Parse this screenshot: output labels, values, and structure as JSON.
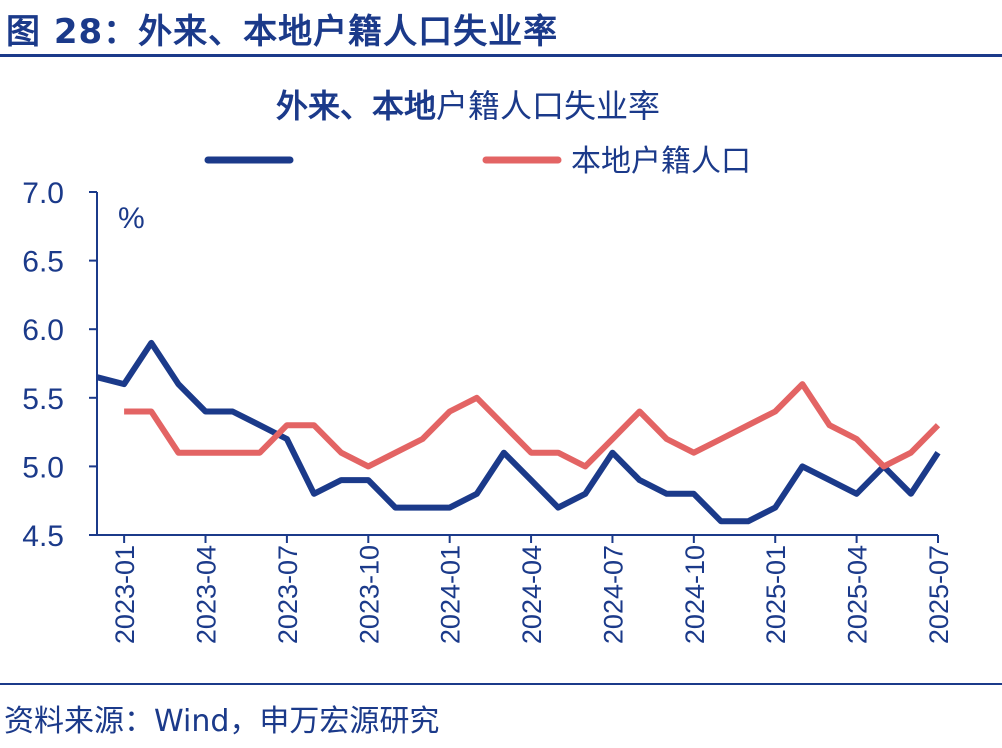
{
  "figure": {
    "title": "图 28：外来、本地户籍人口失业率",
    "source": "资料来源：Wind，申万宏源研究"
  },
  "chart_data": {
    "type": "line",
    "title_bold": "外来、本地",
    "title_rest": "户籍人口失业率",
    "ylabel": "%",
    "ylim": [
      4.5,
      7.0
    ],
    "yticks": [
      "7.0",
      "6.5",
      "6.0",
      "5.5",
      "5.0",
      "4.5"
    ],
    "xtick_labels": [
      "2023-01",
      "2023-04",
      "2023-07",
      "2023-10",
      "2024-01",
      "2024-04",
      "2024-07",
      "2024-10",
      "2025-01",
      "2025-04",
      "2025-07"
    ],
    "x": [
      "2022-12",
      "2023-01",
      "2023-02",
      "2023-03",
      "2023-04",
      "2023-05",
      "2023-06",
      "2023-07",
      "2023-08",
      "2023-09",
      "2023-10",
      "2023-11",
      "2023-12",
      "2024-01",
      "2024-02",
      "2024-03",
      "2024-04",
      "2024-05",
      "2024-06",
      "2024-07",
      "2024-08",
      "2024-09",
      "2024-10",
      "2024-11",
      "2024-12",
      "2025-01",
      "2025-02",
      "2025-03",
      "2025-04",
      "2025-05",
      "2025-06",
      "2025-07"
    ],
    "series": [
      {
        "name": "",
        "color": "#1b3a8a",
        "values": [
          5.65,
          5.6,
          5.9,
          5.6,
          5.4,
          5.4,
          5.3,
          5.2,
          4.8,
          4.9,
          4.9,
          4.7,
          4.7,
          4.7,
          4.8,
          5.1,
          4.9,
          4.7,
          4.8,
          5.1,
          4.9,
          4.8,
          4.8,
          4.6,
          4.6,
          4.7,
          5.0,
          4.9,
          4.8,
          5.0,
          4.8,
          5.1
        ]
      },
      {
        "name": "本地户籍人口",
        "color": "#e36464",
        "values": [
          null,
          5.4,
          5.4,
          5.1,
          5.1,
          5.1,
          5.1,
          5.3,
          5.3,
          5.1,
          5.0,
          5.1,
          5.2,
          5.4,
          5.5,
          5.3,
          5.1,
          5.1,
          5.0,
          5.2,
          5.4,
          5.2,
          5.1,
          5.2,
          5.3,
          5.4,
          5.6,
          5.3,
          5.2,
          5.0,
          5.1,
          5.3
        ]
      }
    ]
  }
}
